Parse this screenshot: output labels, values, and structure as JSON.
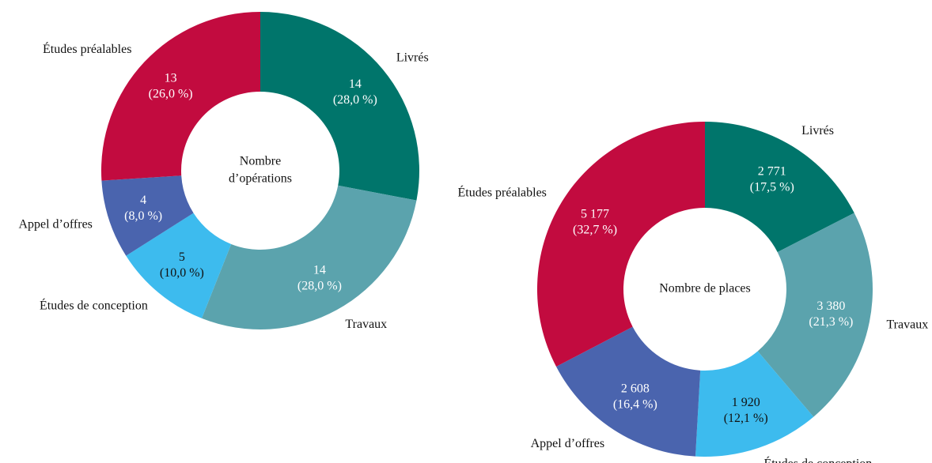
{
  "chart_data": [
    {
      "type": "donut",
      "center_label": [
        "Nombre",
        "d’opérations"
      ],
      "categories": [
        "Livrés",
        "Travaux",
        "Études de conception",
        "Appel d’offres",
        "Études préalables"
      ],
      "values": [
        14,
        14,
        5,
        4,
        13
      ],
      "percents": [
        28.0,
        28.0,
        10.0,
        8.0,
        26.0
      ],
      "percent_labels": [
        "(28,0 %)",
        "(28,0 %)",
        "(10,0 %)",
        "(8,0 %)",
        "(26,0 %)"
      ],
      "colors": [
        "#00756b",
        "#5ba3ad",
        "#3dbbee",
        "#4a64ae",
        "#c20b3f"
      ],
      "text_colors": [
        "#ffffff",
        "#ffffff",
        "#111111",
        "#ffffff",
        "#ffffff"
      ]
    },
    {
      "type": "donut",
      "center_label": [
        "Nombre de places"
      ],
      "categories": [
        "Livrés",
        "Travaux",
        "Études de conception",
        "Appel d’offres",
        "Études préalables"
      ],
      "values": [
        2771,
        3380,
        1920,
        2608,
        5177
      ],
      "value_labels": [
        "2 771",
        "3 380",
        "1 920",
        "2 608",
        "5 177"
      ],
      "percents": [
        17.5,
        21.3,
        12.1,
        16.4,
        32.7
      ],
      "percent_labels": [
        "(17,5 %)",
        "(21,3 %)",
        "(12,1 %)",
        "(16,4 %)",
        "(32,7 %)"
      ],
      "colors": [
        "#00756b",
        "#5ba3ad",
        "#3dbbee",
        "#4a64ae",
        "#c20b3f"
      ],
      "text_colors": [
        "#ffffff",
        "#ffffff",
        "#111111",
        "#ffffff",
        "#ffffff"
      ]
    }
  ]
}
